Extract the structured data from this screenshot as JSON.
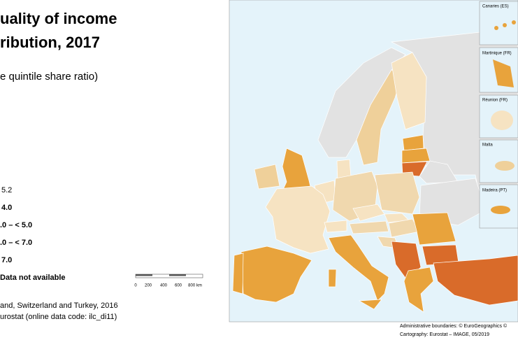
{
  "title": {
    "line1": "uality of income",
    "line2": "ribution, 2017"
  },
  "subtitle": "e quintile share ratio)",
  "legend": [
    "5.2",
    "4.0",
    ".0 – < 5.0",
    ".0 – < 7.0",
    "7.0",
    "Data not available"
  ],
  "notes": [
    "and, Switzerland and Turkey, 2016",
    "urostat (online data code: ilc_di11)"
  ],
  "scale_labels": [
    "0",
    "200",
    "400",
    "600",
    "800 km"
  ],
  "insets": [
    "Canaries (ES)",
    "Martinique (FR)",
    "Réunion (FR)",
    "Malta",
    "Madeira (PT)"
  ],
  "credits": [
    "Administrative boundaries: © EuroGeographics ©",
    "Cartography: Eurostat – IMAGE, 05/2019"
  ]
}
